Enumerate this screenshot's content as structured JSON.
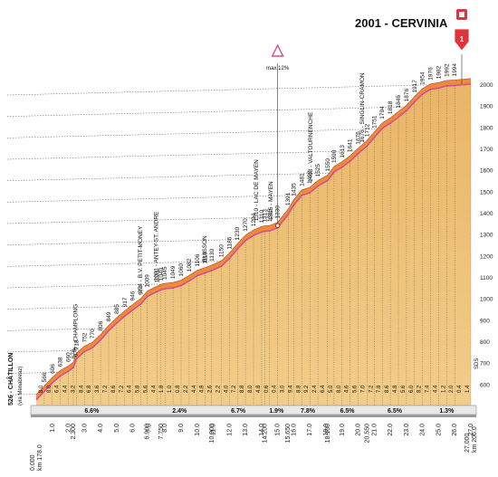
{
  "header": {
    "finish_title": "2001 - CERVINIA",
    "finish_badge": "1"
  },
  "start": {
    "altitude": "526",
    "name": "CHÂTILLON",
    "sub": "(via Menabreaz)"
  },
  "max_marker": {
    "label": "max 12%",
    "km": 15.0,
    "alt": 1340
  },
  "bottom_left": {
    "km_total": "0.000",
    "km_label": "km 178.0"
  },
  "bottom_right": {
    "km_total": "27.000",
    "km_label": "km 206.0",
    "sds": "SDS"
  },
  "colors": {
    "profile_fill": "#f2cd8a",
    "profile_fill_dark": "#e8b566",
    "road_orange": "#ef8a3a",
    "road_pink": "#d2509a",
    "grid": "#555555",
    "badge_red": "#e0343d"
  },
  "chart_data": {
    "type": "area",
    "x_unit": "km",
    "y_unit": "m",
    "xlim": [
      0,
      27
    ],
    "ylim": [
      500,
      2000
    ],
    "y_ticks": [
      600,
      700,
      800,
      900,
      1000,
      1100,
      1200,
      1300,
      1400,
      1500,
      1600,
      1700,
      1800,
      1900,
      2000
    ],
    "x_ticks": [
      1.0,
      2.0,
      3.0,
      4.0,
      5.0,
      6.0,
      7.0,
      8.0,
      9.0,
      10.0,
      11.0,
      12.0,
      13.0,
      14.0,
      15.0,
      16.0,
      17.0,
      18.0,
      19.0,
      20.0,
      21.0,
      22.0,
      23.0,
      24.0,
      25.0,
      26.0,
      27.0
    ],
    "profile": [
      {
        "km": 0.0,
        "alt": 526
      },
      {
        "km": 0.5,
        "alt": 566
      },
      {
        "km": 1.0,
        "alt": 606
      },
      {
        "km": 1.5,
        "alt": 638
      },
      {
        "km": 2.0,
        "alt": 660
      },
      {
        "km": 2.3,
        "alt": 676
      },
      {
        "km": 2.5,
        "alt": 718
      },
      {
        "km": 3.0,
        "alt": 752
      },
      {
        "km": 3.5,
        "alt": 770
      },
      {
        "km": 4.0,
        "alt": 806
      },
      {
        "km": 4.5,
        "alt": 849
      },
      {
        "km": 5.0,
        "alt": 885
      },
      {
        "km": 5.5,
        "alt": 917
      },
      {
        "km": 6.0,
        "alt": 946
      },
      {
        "km": 6.5,
        "alt": 974
      },
      {
        "km": 6.9,
        "alt": 1009
      },
      {
        "km": 7.5,
        "alt": 1031
      },
      {
        "km": 7.75,
        "alt": 1040
      },
      {
        "km": 8.0,
        "alt": 1045
      },
      {
        "km": 8.5,
        "alt": 1049
      },
      {
        "km": 9.0,
        "alt": 1060
      },
      {
        "km": 9.5,
        "alt": 1082
      },
      {
        "km": 10.0,
        "alt": 1106
      },
      {
        "km": 10.5,
        "alt": 1119
      },
      {
        "km": 10.9,
        "alt": 1130
      },
      {
        "km": 11.5,
        "alt": 1150
      },
      {
        "km": 12.0,
        "alt": 1186
      },
      {
        "km": 12.5,
        "alt": 1230
      },
      {
        "km": 13.0,
        "alt": 1270
      },
      {
        "km": 13.5,
        "alt": 1294
      },
      {
        "km": 14.0,
        "alt": 1310
      },
      {
        "km": 14.2,
        "alt": 1313
      },
      {
        "km": 14.5,
        "alt": 1315
      },
      {
        "km": 15.0,
        "alt": 1330
      },
      {
        "km": 15.65,
        "alt": 1391
      },
      {
        "km": 16.0,
        "alt": 1435
      },
      {
        "km": 16.5,
        "alt": 1481
      },
      {
        "km": 17.0,
        "alt": 1493
      },
      {
        "km": 17.5,
        "alt": 1525
      },
      {
        "km": 18.1,
        "alt": 1550
      },
      {
        "km": 18.5,
        "alt": 1590
      },
      {
        "km": 19.0,
        "alt": 1613
      },
      {
        "km": 19.5,
        "alt": 1641
      },
      {
        "km": 20.0,
        "alt": 1676
      },
      {
        "km": 20.55,
        "alt": 1712
      },
      {
        "km": 21.0,
        "alt": 1751
      },
      {
        "km": 21.5,
        "alt": 1794
      },
      {
        "km": 22.0,
        "alt": 1818
      },
      {
        "km": 22.5,
        "alt": 1846
      },
      {
        "km": 23.0,
        "alt": 1876
      },
      {
        "km": 23.5,
        "alt": 1917
      },
      {
        "km": 24.0,
        "alt": 1954
      },
      {
        "km": 24.5,
        "alt": 1976
      },
      {
        "km": 25.0,
        "alt": 1982
      },
      {
        "km": 25.5,
        "alt": 1992
      },
      {
        "km": 26.0,
        "alt": 1994
      },
      {
        "km": 27.0,
        "alt": 2001
      }
    ],
    "place_labels": [
      {
        "km": 2.4,
        "alt": 676,
        "text": "676 - CHAMPLONG"
      },
      {
        "km": 6.4,
        "alt": 974,
        "text": "974 - B.V. PETIT-MONEY"
      },
      {
        "km": 7.4,
        "alt": 1031,
        "text": "1031 - ANTEY-ST. ANDRE"
      },
      {
        "km": 10.4,
        "alt": 1119,
        "text": "BUISSON"
      },
      {
        "km": 13.6,
        "alt": 1310,
        "text": "1310 - LAC DE MAYEN"
      },
      {
        "km": 14.5,
        "alt": 1315,
        "text": "1315 - MAYEN"
      },
      {
        "km": 17.0,
        "alt": 1493,
        "text": "1493 - VALTOURNENCHE"
      },
      {
        "km": 20.2,
        "alt": 1676,
        "text": "1676 - SINGLIN-CRAMON"
      }
    ],
    "altitude_labels": [
      "566",
      "606",
      "638",
      "660",
      "676",
      "718",
      "752",
      "770",
      "806",
      "849",
      "885",
      "917",
      "946",
      "974",
      "1009",
      "1031",
      "1040",
      "1045",
      "1049",
      "1060",
      "1082",
      "1106",
      "1119",
      "1130",
      "1150",
      "1186",
      "1230",
      "1270",
      "1294",
      "1310",
      "1313",
      "1315",
      "1330",
      "1391",
      "1435",
      "1481",
      "1493",
      "1525",
      "1550",
      "1590",
      "1613",
      "1641",
      "1676",
      "1712",
      "1751",
      "1794",
      "1818",
      "1846",
      "1876",
      "1917",
      "1954",
      "1976",
      "1982",
      "1992",
      "1994"
    ],
    "gradient_labels": [
      {
        "km": 0.5,
        "text": "8.0"
      },
      {
        "km": 1.0,
        "text": "8.0"
      },
      {
        "km": 1.5,
        "text": "6.4"
      },
      {
        "km": 2.0,
        "text": "4.4"
      },
      {
        "km": 2.5,
        "text": "3.2"
      },
      {
        "km": 3.0,
        "text": "8.4"
      },
      {
        "km": 3.5,
        "text": "6.8"
      },
      {
        "km": 4.0,
        "text": "3.6"
      },
      {
        "km": 4.5,
        "text": "7.2"
      },
      {
        "km": 5.0,
        "text": "8.6"
      },
      {
        "km": 5.5,
        "text": "7.2"
      },
      {
        "km": 6.0,
        "text": "6.4"
      },
      {
        "km": 6.5,
        "text": "5.8"
      },
      {
        "km": 7.0,
        "text": "5.6"
      },
      {
        "km": 7.5,
        "text": "4.4"
      },
      {
        "km": 8.0,
        "text": "1.8"
      },
      {
        "km": 8.5,
        "text": "1.0"
      },
      {
        "km": 9.0,
        "text": "0.8"
      },
      {
        "km": 9.5,
        "text": "2.2"
      },
      {
        "km": 10.0,
        "text": "4.4"
      },
      {
        "km": 10.5,
        "text": "4.8"
      },
      {
        "km": 11.0,
        "text": "2.6"
      },
      {
        "km": 11.5,
        "text": "2.2"
      },
      {
        "km": 12.0,
        "text": "4.0"
      },
      {
        "km": 12.5,
        "text": "7.2"
      },
      {
        "km": 13.0,
        "text": "8.8"
      },
      {
        "km": 13.5,
        "text": "8.0"
      },
      {
        "km": 14.0,
        "text": "4.8"
      },
      {
        "km": 14.5,
        "text": "0.6"
      },
      {
        "km": 15.0,
        "text": "0.4"
      },
      {
        "km": 15.5,
        "text": "3.0"
      },
      {
        "km": 16.0,
        "text": "9.4"
      },
      {
        "km": 16.5,
        "text": "8.8"
      },
      {
        "km": 17.0,
        "text": "9.2"
      },
      {
        "km": 17.5,
        "text": "2.4"
      },
      {
        "km": 18.0,
        "text": "6.4"
      },
      {
        "km": 18.5,
        "text": "5.0"
      },
      {
        "km": 19.0,
        "text": "8.0"
      },
      {
        "km": 19.5,
        "text": "4.6"
      },
      {
        "km": 20.0,
        "text": "5.6"
      },
      {
        "km": 20.5,
        "text": "7.0"
      },
      {
        "km": 21.0,
        "text": "7.2"
      },
      {
        "km": 21.5,
        "text": "7.8"
      },
      {
        "km": 22.0,
        "text": "8.6"
      },
      {
        "km": 22.5,
        "text": "4.8"
      },
      {
        "km": 23.0,
        "text": "5.6"
      },
      {
        "km": 23.5,
        "text": "6.0"
      },
      {
        "km": 24.0,
        "text": "8.2"
      },
      {
        "km": 24.5,
        "text": "7.4"
      },
      {
        "km": 25.0,
        "text": "4.4"
      },
      {
        "km": 25.5,
        "text": "1.2"
      },
      {
        "km": 26.0,
        "text": "2.0"
      },
      {
        "km": 26.5,
        "text": "0.4"
      },
      {
        "km": 27.0,
        "text": "1.4"
      }
    ],
    "segment_gradients": [
      {
        "from": 0.0,
        "to": 6.9,
        "text": "6.6%"
      },
      {
        "from": 6.9,
        "to": 10.9,
        "text": "2.4%"
      },
      {
        "from": 10.9,
        "to": 14.2,
        "text": "6.7%"
      },
      {
        "from": 14.2,
        "to": 15.65,
        "text": "1.9%"
      },
      {
        "from": 15.65,
        "to": 18.1,
        "text": "7.8%"
      },
      {
        "from": 18.1,
        "to": 20.55,
        "text": "6.5%"
      },
      {
        "from": 20.55,
        "to": 24.0,
        "text": "6.5%"
      },
      {
        "from": 24.0,
        "to": 27.0,
        "text": "1.3%"
      }
    ],
    "partial_km": [
      "2.300",
      "6.900",
      "7.750",
      "10.900",
      "14.200",
      "15.650",
      "18.100",
      "20.550"
    ]
  }
}
